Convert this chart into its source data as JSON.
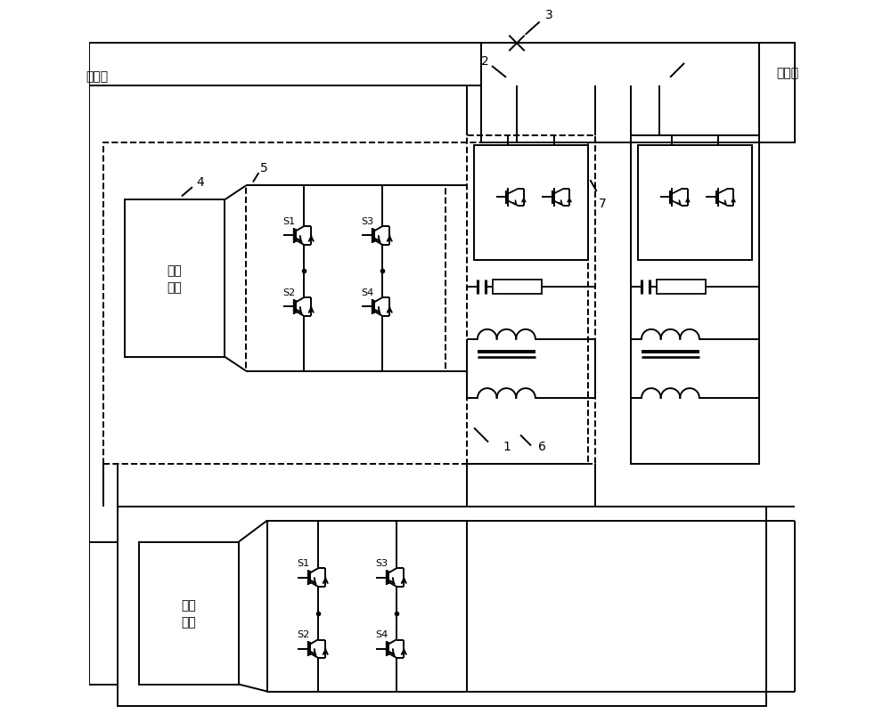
{
  "bg_color": "#ffffff",
  "line_color": "#000000",
  "lw": 1.4,
  "fig_w": 10.0,
  "fig_h": 8.03,
  "xlim": [
    0,
    100
  ],
  "ylim": [
    0,
    100
  ],
  "labels": {
    "power_side": "电源侧",
    "load_side": "负荷侧",
    "storage": "储能\n单元",
    "n1": "1",
    "n2": "2",
    "n3": "3",
    "n4": "4",
    "n5": "5",
    "n6": "6",
    "n7": "7"
  }
}
